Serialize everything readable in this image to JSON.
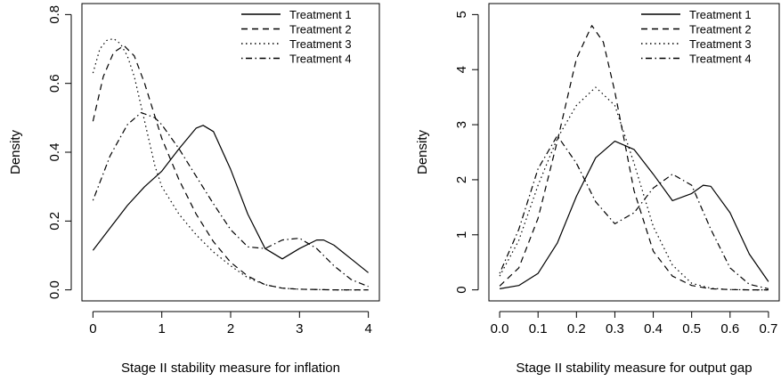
{
  "chart_data": [
    {
      "type": "line",
      "xlabel": "Stage II stability measure for inflation",
      "ylabel": "Density",
      "xlim": [
        -0.16,
        4.16
      ],
      "ylim": [
        -0.032,
        0.832
      ],
      "xticks": [
        0,
        1,
        2,
        3,
        4
      ],
      "xtick_labels": [
        "0",
        "1",
        "2",
        "3",
        "4"
      ],
      "yticks": [
        0.0,
        0.2,
        0.4,
        0.6,
        0.8
      ],
      "ytick_labels": [
        "0.0",
        "0.2",
        "0.4",
        "0.6",
        "0.8"
      ],
      "grid": false,
      "legend_position": "top-right",
      "series": [
        {
          "name": "Treatment 1",
          "linestyle": "solid",
          "x": [
            0,
            0.25,
            0.5,
            0.75,
            1.0,
            1.25,
            1.5,
            1.6,
            1.75,
            2.0,
            2.25,
            2.5,
            2.75,
            3.0,
            3.25,
            3.35,
            3.5,
            3.75,
            4.0
          ],
          "y": [
            0.115,
            0.18,
            0.245,
            0.3,
            0.345,
            0.41,
            0.47,
            0.478,
            0.46,
            0.35,
            0.22,
            0.12,
            0.09,
            0.12,
            0.145,
            0.145,
            0.13,
            0.09,
            0.05
          ]
        },
        {
          "name": "Treatment 2",
          "linestyle": "dashed",
          "x": [
            0,
            0.15,
            0.3,
            0.45,
            0.6,
            0.75,
            1.0,
            1.25,
            1.5,
            1.75,
            2.0,
            2.25,
            2.5,
            2.75,
            3.0,
            3.5,
            4.0
          ],
          "y": [
            0.49,
            0.62,
            0.69,
            0.71,
            0.68,
            0.6,
            0.44,
            0.32,
            0.22,
            0.14,
            0.08,
            0.04,
            0.015,
            0.005,
            0.002,
            0.0,
            0.0
          ]
        },
        {
          "name": "Treatment 3",
          "linestyle": "dotted",
          "x": [
            0,
            0.1,
            0.2,
            0.3,
            0.4,
            0.5,
            0.6,
            0.75,
            0.9,
            1.0,
            1.25,
            1.5,
            1.75,
            2.0,
            2.25,
            2.5,
            2.75,
            3.0,
            3.5,
            4.0
          ],
          "y": [
            0.63,
            0.7,
            0.725,
            0.73,
            0.715,
            0.68,
            0.62,
            0.49,
            0.36,
            0.3,
            0.22,
            0.16,
            0.11,
            0.07,
            0.035,
            0.015,
            0.005,
            0.002,
            0.0,
            0.0
          ]
        },
        {
          "name": "Treatment 4",
          "linestyle": "dotdash",
          "x": [
            0,
            0.25,
            0.5,
            0.7,
            0.9,
            1.0,
            1.25,
            1.5,
            1.75,
            2.0,
            2.25,
            2.5,
            2.75,
            3.0,
            3.25,
            3.5,
            3.75,
            4.0
          ],
          "y": [
            0.26,
            0.39,
            0.48,
            0.515,
            0.5,
            0.48,
            0.41,
            0.33,
            0.25,
            0.175,
            0.125,
            0.12,
            0.145,
            0.15,
            0.12,
            0.07,
            0.03,
            0.01
          ]
        }
      ]
    },
    {
      "type": "line",
      "xlabel": "Stage II stability measure for output gap",
      "ylabel": "Density",
      "xlim": [
        -0.028,
        0.728
      ],
      "ylim": [
        -0.2,
        5.2
      ],
      "xticks": [
        0.0,
        0.1,
        0.2,
        0.3,
        0.4,
        0.5,
        0.6,
        0.7
      ],
      "xtick_labels": [
        "0.0",
        "0.1",
        "0.2",
        "0.3",
        "0.4",
        "0.5",
        "0.6",
        "0.7"
      ],
      "yticks": [
        0,
        1,
        2,
        3,
        4,
        5
      ],
      "ytick_labels": [
        "0",
        "1",
        "2",
        "3",
        "4",
        "5"
      ],
      "grid": false,
      "legend_position": "top-right",
      "series": [
        {
          "name": "Treatment 1",
          "linestyle": "solid",
          "x": [
            0.0,
            0.05,
            0.1,
            0.15,
            0.2,
            0.25,
            0.3,
            0.35,
            0.4,
            0.45,
            0.5,
            0.53,
            0.55,
            0.6,
            0.65,
            0.7
          ],
          "y": [
            0.02,
            0.08,
            0.3,
            0.85,
            1.7,
            2.4,
            2.7,
            2.55,
            2.1,
            1.62,
            1.75,
            1.9,
            1.88,
            1.4,
            0.65,
            0.15
          ]
        },
        {
          "name": "Treatment 2",
          "linestyle": "dashed",
          "x": [
            0.0,
            0.05,
            0.1,
            0.15,
            0.2,
            0.24,
            0.27,
            0.3,
            0.35,
            0.4,
            0.45,
            0.5,
            0.55,
            0.6,
            0.65,
            0.7
          ],
          "y": [
            0.07,
            0.4,
            1.3,
            2.7,
            4.2,
            4.8,
            4.5,
            3.6,
            1.8,
            0.7,
            0.25,
            0.08,
            0.02,
            0.005,
            0.0,
            0.0
          ]
        },
        {
          "name": "Treatment 3",
          "linestyle": "dotted",
          "x": [
            0.0,
            0.05,
            0.1,
            0.15,
            0.2,
            0.25,
            0.3,
            0.35,
            0.4,
            0.45,
            0.5,
            0.55,
            0.6,
            0.65,
            0.7
          ],
          "y": [
            0.25,
            0.9,
            1.9,
            2.75,
            3.35,
            3.68,
            3.35,
            2.3,
            1.15,
            0.45,
            0.12,
            0.03,
            0.005,
            0.0,
            0.0
          ]
        },
        {
          "name": "Treatment 4",
          "linestyle": "dotdash",
          "x": [
            0.0,
            0.05,
            0.1,
            0.15,
            0.2,
            0.25,
            0.3,
            0.35,
            0.4,
            0.45,
            0.5,
            0.55,
            0.6,
            0.65,
            0.7
          ],
          "y": [
            0.3,
            1.1,
            2.2,
            2.8,
            2.3,
            1.6,
            1.2,
            1.4,
            1.85,
            2.1,
            1.9,
            1.1,
            0.4,
            0.1,
            0.02
          ]
        }
      ]
    }
  ]
}
